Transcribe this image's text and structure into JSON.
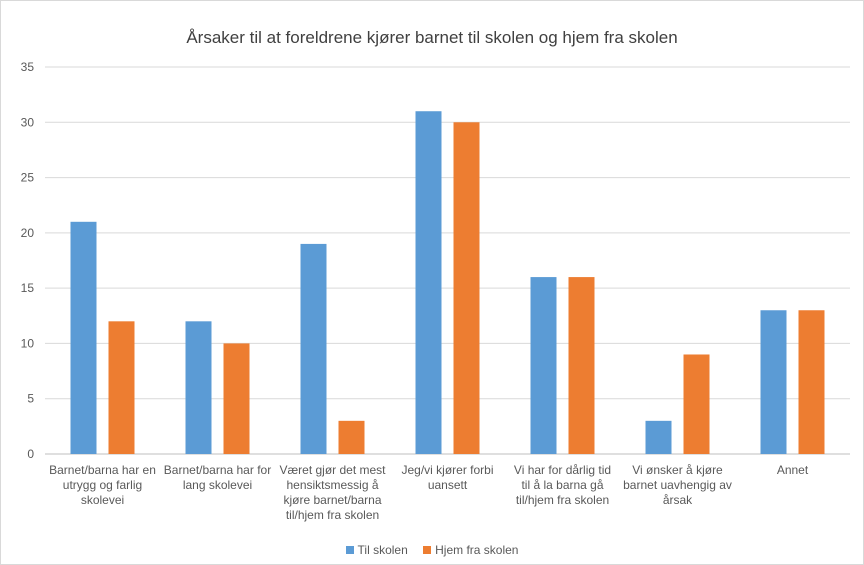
{
  "chart_data": {
    "type": "bar",
    "title": "Årsaker til at foreldrene kjører barnet til skolen og hjem fra skolen",
    "categories": [
      [
        "Barnet/barna har en",
        "utrygg og farlig",
        "skolevei"
      ],
      [
        "Barnet/barna har for",
        "lang skolevei"
      ],
      [
        "Været gjør det mest",
        "hensiktsmessig å",
        "kjøre barnet/barna",
        "til/hjem fra skolen"
      ],
      [
        "Jeg/vi kjører forbi",
        "uansett"
      ],
      [
        "Vi har for dårlig tid",
        "til å la barna gå",
        "til/hjem fra skolen"
      ],
      [
        "Vi ønsker å kjøre",
        "barnet uavhengig av",
        "årsak"
      ],
      [
        "Annet"
      ]
    ],
    "series": [
      {
        "name": "Til skolen",
        "color": "#5b9bd5",
        "values": [
          21,
          12,
          19,
          31,
          16,
          3,
          13
        ]
      },
      {
        "name": "Hjem fra skolen",
        "color": "#ed7d31",
        "values": [
          12,
          10,
          3,
          30,
          16,
          9,
          13
        ]
      }
    ],
    "ylim": [
      0,
      35
    ],
    "yticks": [
      0,
      5,
      10,
      15,
      20,
      25,
      30,
      35
    ],
    "grid": true,
    "legend_position": "bottom"
  }
}
